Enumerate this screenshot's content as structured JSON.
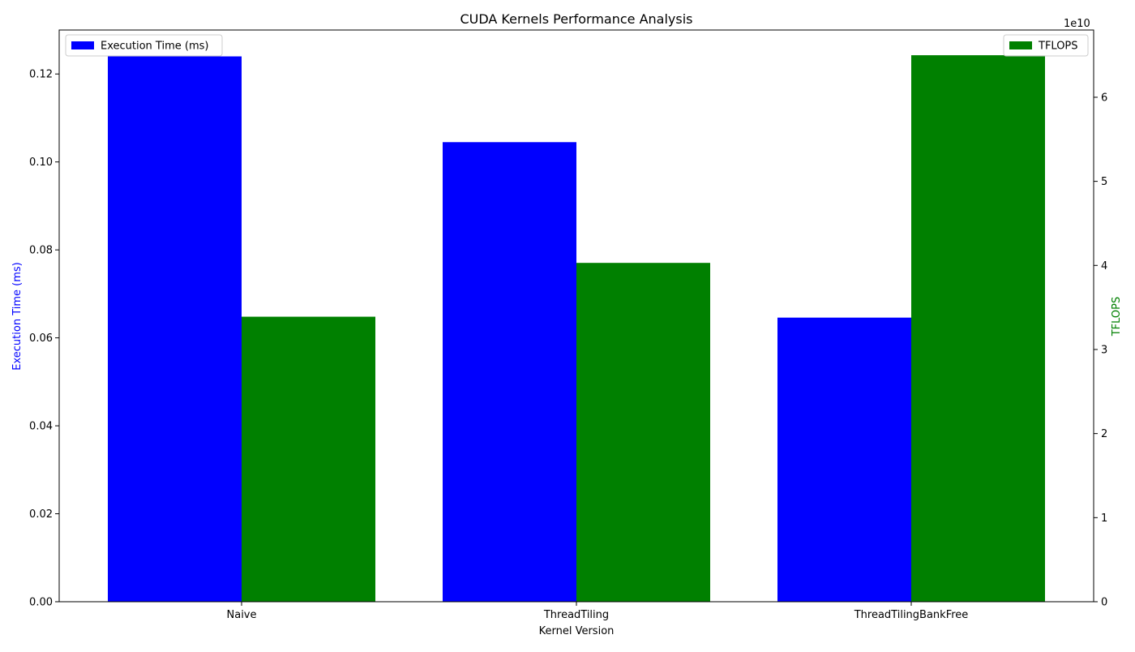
{
  "chart_data": {
    "type": "bar",
    "title": "CUDA Kernels Performance Analysis",
    "xlabel": "Kernel Version",
    "categories": [
      "Naive",
      "ThreadTiling",
      "ThreadTilingBankFree"
    ],
    "left_axis": {
      "label": "Execution Time (ms)",
      "color": "#0000ff",
      "ylim": [
        0,
        0.13
      ],
      "ticks": [
        0.0,
        0.02,
        0.04,
        0.06,
        0.08,
        0.1,
        0.12
      ],
      "tick_labels": [
        "0.00",
        "0.02",
        "0.04",
        "0.06",
        "0.08",
        "0.10",
        "0.12"
      ]
    },
    "right_axis": {
      "label": "TFLOPS",
      "color": "#008000",
      "ylim": [
        0,
        68000000000
      ],
      "offset_label": "1e10",
      "ticks": [
        0,
        10000000000,
        20000000000,
        30000000000,
        40000000000,
        50000000000,
        60000000000
      ],
      "tick_labels": [
        "0",
        "1",
        "2",
        "3",
        "4",
        "5",
        "6"
      ]
    },
    "series": [
      {
        "name": "Execution Time (ms)",
        "axis": "left",
        "color": "#0000ff",
        "values": [
          0.124,
          0.1045,
          0.0646
        ]
      },
      {
        "name": "TFLOPS",
        "axis": "right",
        "color": "#008000",
        "values": [
          33900000000,
          40300000000,
          65000000000
        ]
      }
    ],
    "legends": [
      {
        "placement": "top-left",
        "entries": [
          "Execution Time (ms)"
        ]
      },
      {
        "placement": "top-right",
        "entries": [
          "TFLOPS"
        ]
      }
    ],
    "grid": false
  }
}
